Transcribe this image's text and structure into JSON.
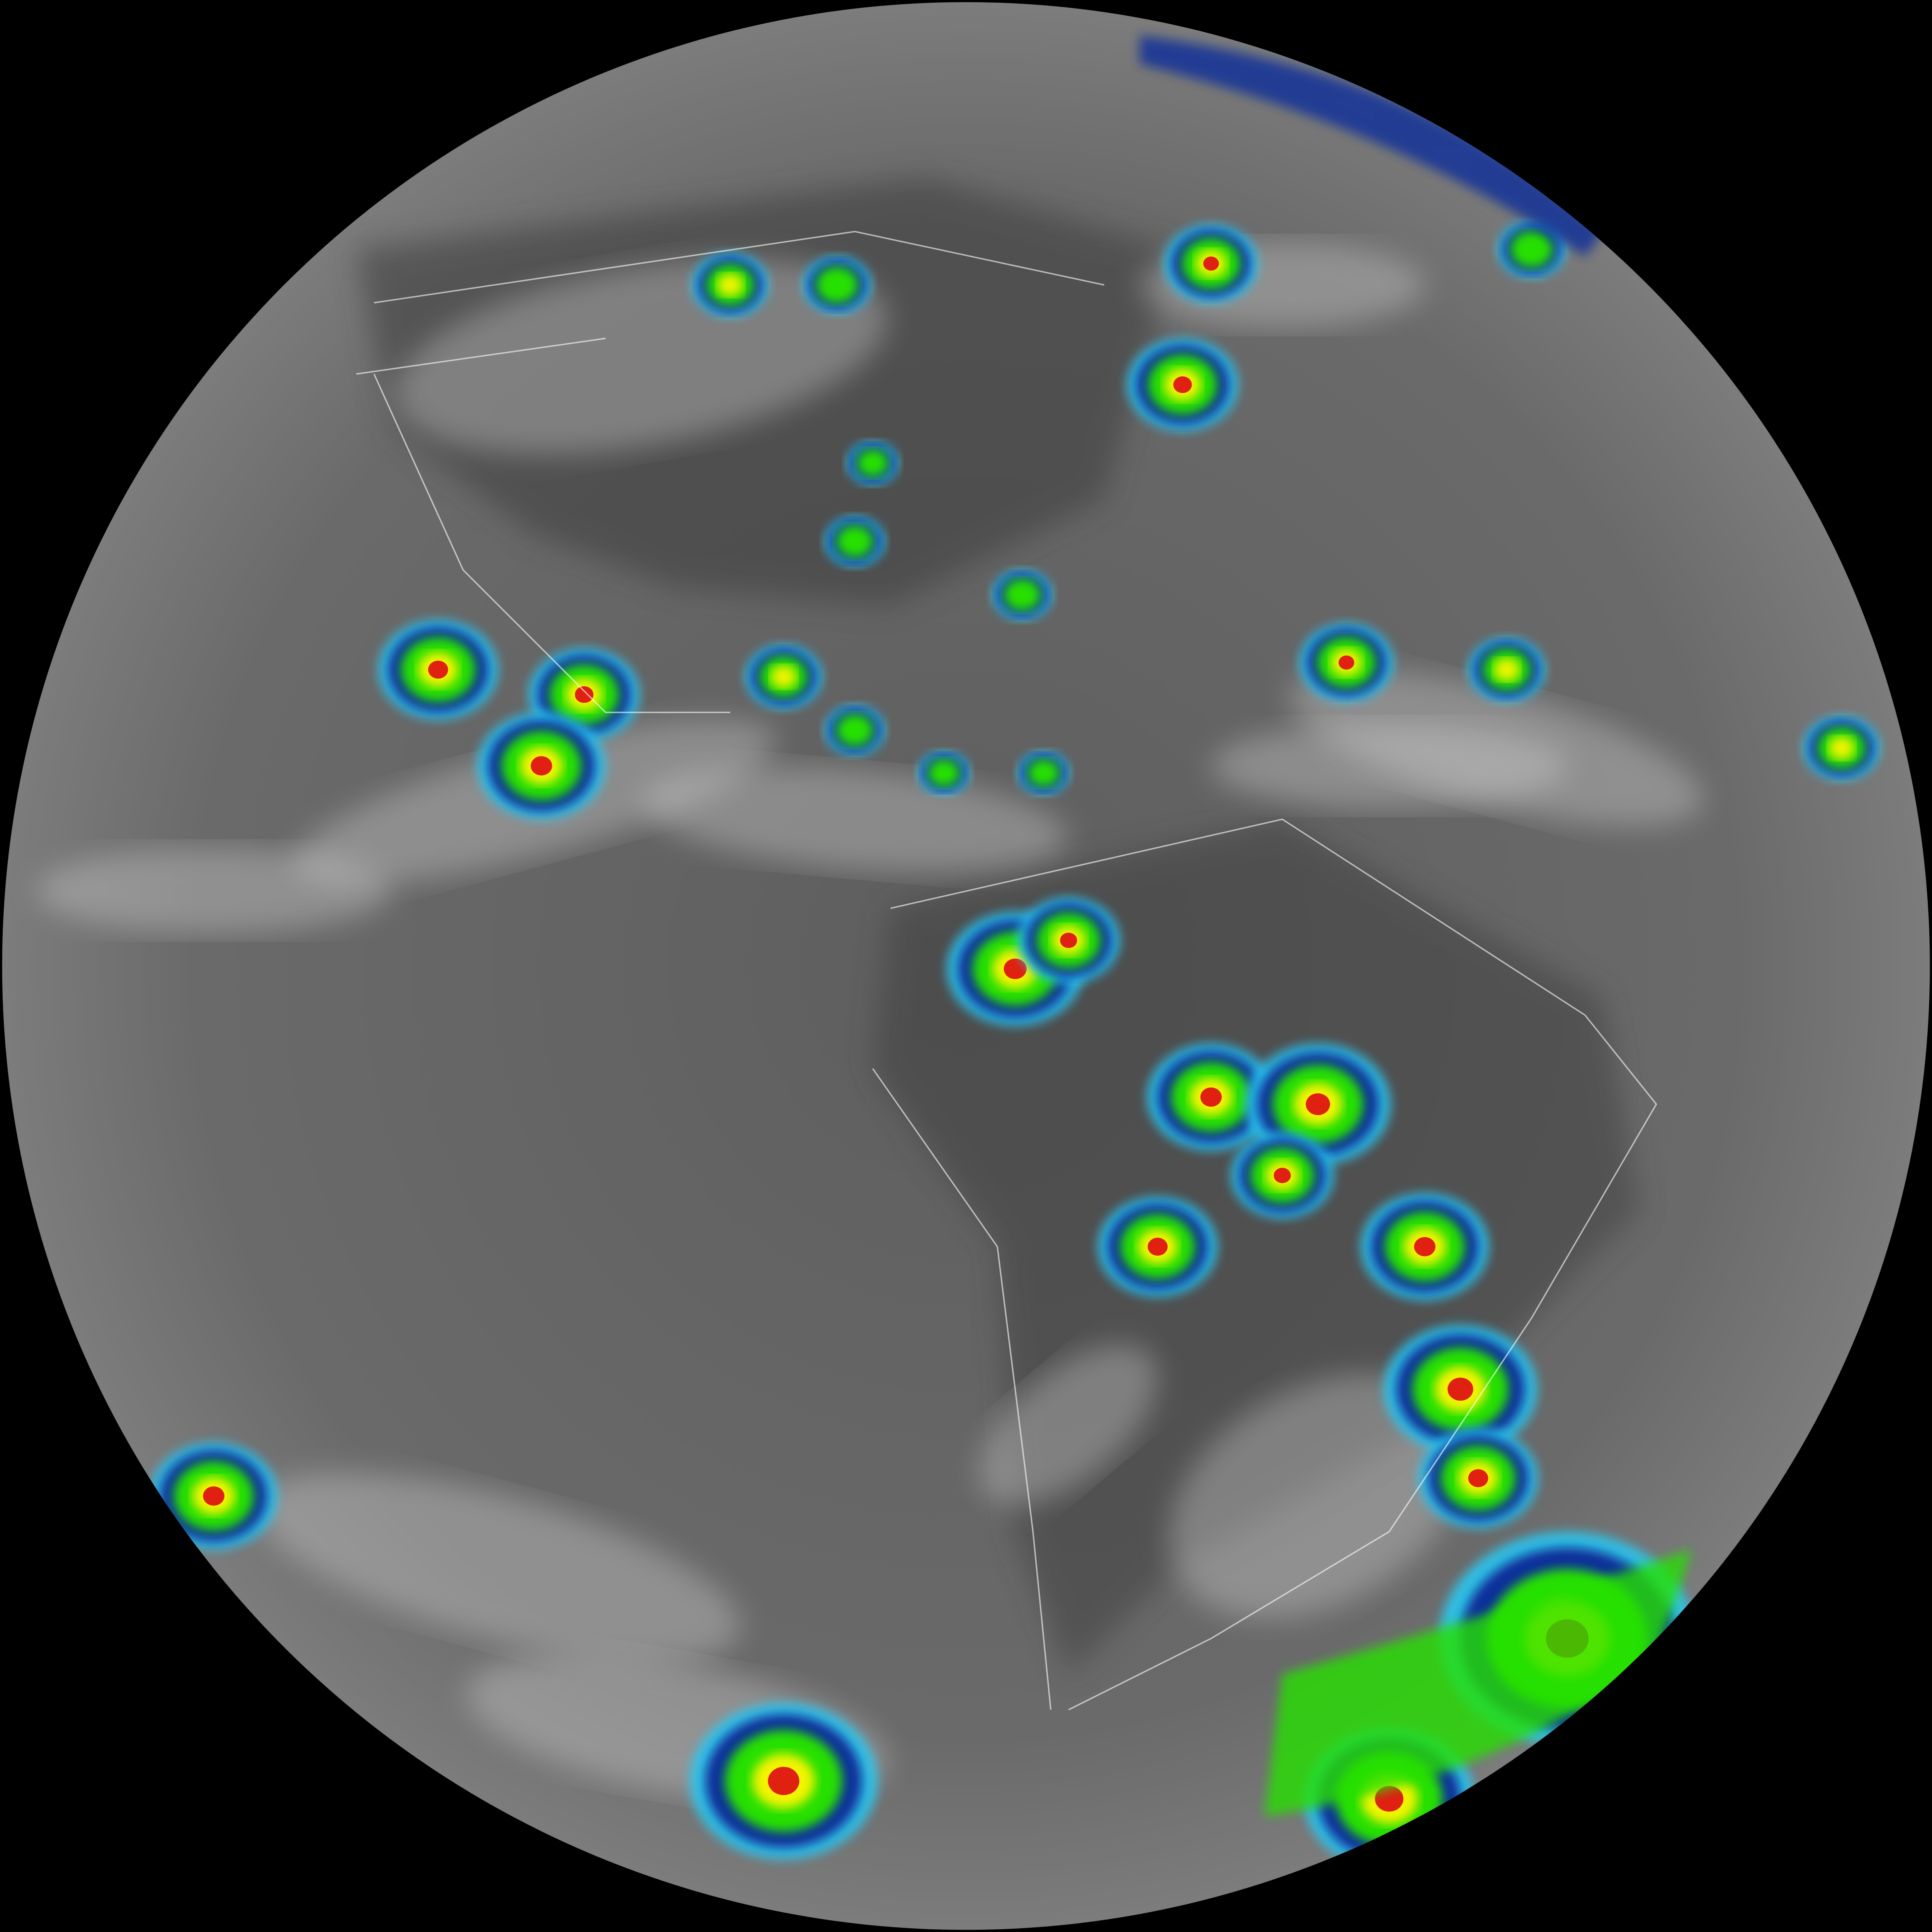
{
  "colors": {
    "space": "#000000",
    "disk_center": "#5e5e5e",
    "disk_edge": "#7c7c7c",
    "dark_land": "#3e3e3e",
    "cloud_white": "#d8d8d8",
    "ir_cyan": "#29c8f0",
    "ir_blue": "#0a2f9a",
    "ir_green": "#27e000",
    "ir_yellow": "#f4f400",
    "ir_red": "#e02010",
    "border_line": "#ffffff"
  }
}
